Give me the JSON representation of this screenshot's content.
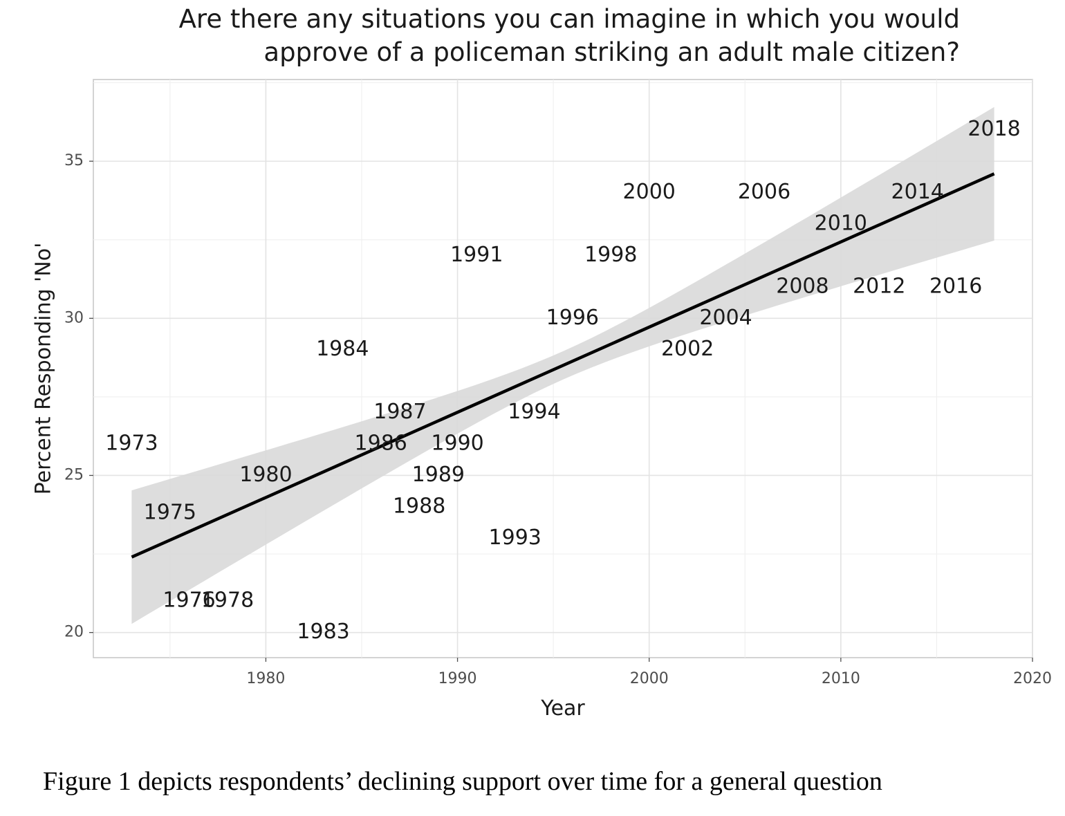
{
  "chart_data": {
    "type": "scatter",
    "title_lines": [
      "Are there any situations you can imagine in which you would",
      "approve of a policeman striking an adult male citizen?"
    ],
    "xlabel": "Year",
    "ylabel": "Percent Responding 'No'",
    "xlim": [
      1971,
      2020
    ],
    "ylim": [
      19.2,
      37.6
    ],
    "x_ticks": [
      1980,
      1990,
      2000,
      2010,
      2020
    ],
    "y_ticks": [
      20,
      25,
      30,
      35
    ],
    "grid": true,
    "point_style": "year labels used as markers",
    "points": [
      {
        "x": 1973,
        "y": 26.0,
        "label": "1973"
      },
      {
        "x": 1975,
        "y": 23.8,
        "label": "1975"
      },
      {
        "x": 1976,
        "y": 21.0,
        "label": "1976"
      },
      {
        "x": 1978,
        "y": 21.0,
        "label": "1978"
      },
      {
        "x": 1980,
        "y": 25.0,
        "label": "1980"
      },
      {
        "x": 1983,
        "y": 20.0,
        "label": "1983"
      },
      {
        "x": 1984,
        "y": 29.0,
        "label": "1984"
      },
      {
        "x": 1986,
        "y": 26.0,
        "label": "1986"
      },
      {
        "x": 1987,
        "y": 27.0,
        "label": "1987"
      },
      {
        "x": 1988,
        "y": 24.0,
        "label": "1988"
      },
      {
        "x": 1989,
        "y": 25.0,
        "label": "1989"
      },
      {
        "x": 1990,
        "y": 26.0,
        "label": "1990"
      },
      {
        "x": 1991,
        "y": 32.0,
        "label": "1991"
      },
      {
        "x": 1993,
        "y": 23.0,
        "label": "1993"
      },
      {
        "x": 1994,
        "y": 27.0,
        "label": "1994"
      },
      {
        "x": 1996,
        "y": 30.0,
        "label": "1996"
      },
      {
        "x": 1998,
        "y": 32.0,
        "label": "1998"
      },
      {
        "x": 2000,
        "y": 34.0,
        "label": "2000"
      },
      {
        "x": 2002,
        "y": 29.0,
        "label": "2002"
      },
      {
        "x": 2004,
        "y": 30.0,
        "label": "2004"
      },
      {
        "x": 2006,
        "y": 34.0,
        "label": "2006"
      },
      {
        "x": 2008,
        "y": 31.0,
        "label": "2008"
      },
      {
        "x": 2010,
        "y": 33.0,
        "label": "2010"
      },
      {
        "x": 2012,
        "y": 31.0,
        "label": "2012"
      },
      {
        "x": 2014,
        "y": 34.0,
        "label": "2014"
      },
      {
        "x": 2016,
        "y": 31.0,
        "label": "2016"
      },
      {
        "x": 2018,
        "y": 36.0,
        "label": "2018"
      }
    ],
    "trend": {
      "type": "linear fit with confidence band",
      "x": [
        1973,
        2018
      ],
      "y": [
        22.4,
        34.6
      ],
      "band_lower": [
        20.3,
        32.4
      ],
      "band_upper": [
        24.4,
        36.8
      ],
      "band_min_half_width": 0.45,
      "line_color": "#000000",
      "band_color": "#d9d9d9"
    }
  },
  "caption": "Figure 1 depicts respondents’ declining support over time for a general question"
}
